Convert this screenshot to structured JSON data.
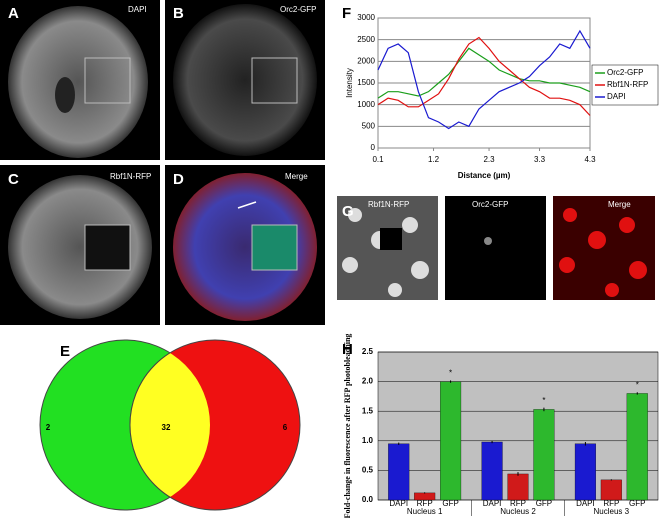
{
  "panels": [
    {
      "letter": "A",
      "label": "DAPI"
    },
    {
      "letter": "B",
      "label": "Orc2-GFP"
    },
    {
      "letter": "C",
      "label": "Rbf1N-RFP"
    },
    {
      "letter": "D",
      "label": "Merge"
    }
  ],
  "panel_g": {
    "letter": "G",
    "labels": [
      "Rbf1N-RFP",
      "Orc2-GFP",
      "Merge"
    ]
  },
  "venn": {
    "letter": "E",
    "left": 2,
    "center": 32,
    "right": 6
  },
  "chart_data": [
    {
      "type": "line",
      "letter": "F",
      "x_label": "Distance (µm)",
      "y_label": "Intensity",
      "x": [
        0.1,
        0.3,
        0.5,
        0.7,
        0.9,
        1.1,
        1.3,
        1.5,
        1.7,
        1.9,
        2.1,
        2.3,
        2.5,
        2.7,
        2.9,
        3.1,
        3.3,
        3.5,
        3.7,
        3.9,
        4.1,
        4.3
      ],
      "xlim": [
        0.1,
        4.3
      ],
      "xticks": [
        0.1,
        1.2,
        2.3,
        3.3,
        4.3
      ],
      "ylim": [
        0,
        3000
      ],
      "yticks": [
        0,
        500,
        1000,
        1500,
        2000,
        2500,
        3000
      ],
      "grid": true,
      "legend": "right",
      "series": [
        {
          "name": "Orc2-GFP",
          "color": "#1a9e1a",
          "values": [
            1150,
            1300,
            1300,
            1250,
            1200,
            1300,
            1500,
            1700,
            2000,
            2300,
            2150,
            2000,
            1800,
            1700,
            1600,
            1550,
            1550,
            1500,
            1500,
            1450,
            1400,
            1300
          ]
        },
        {
          "name": "Rbf1N-RFP",
          "color": "#e01010",
          "values": [
            1000,
            1150,
            1100,
            950,
            950,
            1100,
            1250,
            1600,
            2050,
            2400,
            2550,
            2300,
            2000,
            1800,
            1600,
            1400,
            1300,
            1150,
            1150,
            1100,
            1000,
            750
          ]
        },
        {
          "name": "DAPI",
          "color": "#1a1ad0",
          "values": [
            1800,
            2300,
            2400,
            2200,
            1300,
            700,
            600,
            450,
            600,
            500,
            900,
            1100,
            1300,
            1400,
            1500,
            1650,
            1900,
            2100,
            2400,
            2300,
            2700,
            2300
          ]
        }
      ]
    },
    {
      "type": "bar",
      "letter": "H",
      "y_label": "Fold-change in fluorescence after RFP photobleaching",
      "categories": [
        "DAPI",
        "RFP",
        "GFP"
      ],
      "colors": [
        "#1a1ad0",
        "#d01a1a",
        "#2db82d"
      ],
      "ylim": [
        0,
        2.5
      ],
      "yticks": [
        {
          "value": 0,
          "label": "0.0"
        },
        0.5,
        {
          "value": 1,
          "label": "1.0"
        },
        1.5,
        {
          "value": 2,
          "label": "2.0"
        },
        2.5
      ],
      "grid": true,
      "series": [
        {
          "name": "Nucleus 1",
          "values": [
            0.95,
            0.12,
            2.0
          ],
          "errors": [
            0.02,
            0.01,
            0.02
          ],
          "annotations": [
            null,
            null,
            "*"
          ]
        },
        {
          "name": "Nucleus 2",
          "values": [
            0.98,
            0.44,
            1.53
          ],
          "errors": [
            0.02,
            0.03,
            0.03
          ],
          "annotations": [
            null,
            null,
            "*"
          ]
        },
        {
          "name": "Nucleus 3",
          "values": [
            0.95,
            0.34,
            1.8
          ],
          "errors": [
            0.03,
            0.01,
            0.02
          ],
          "annotations": [
            null,
            null,
            "*"
          ]
        }
      ]
    }
  ]
}
